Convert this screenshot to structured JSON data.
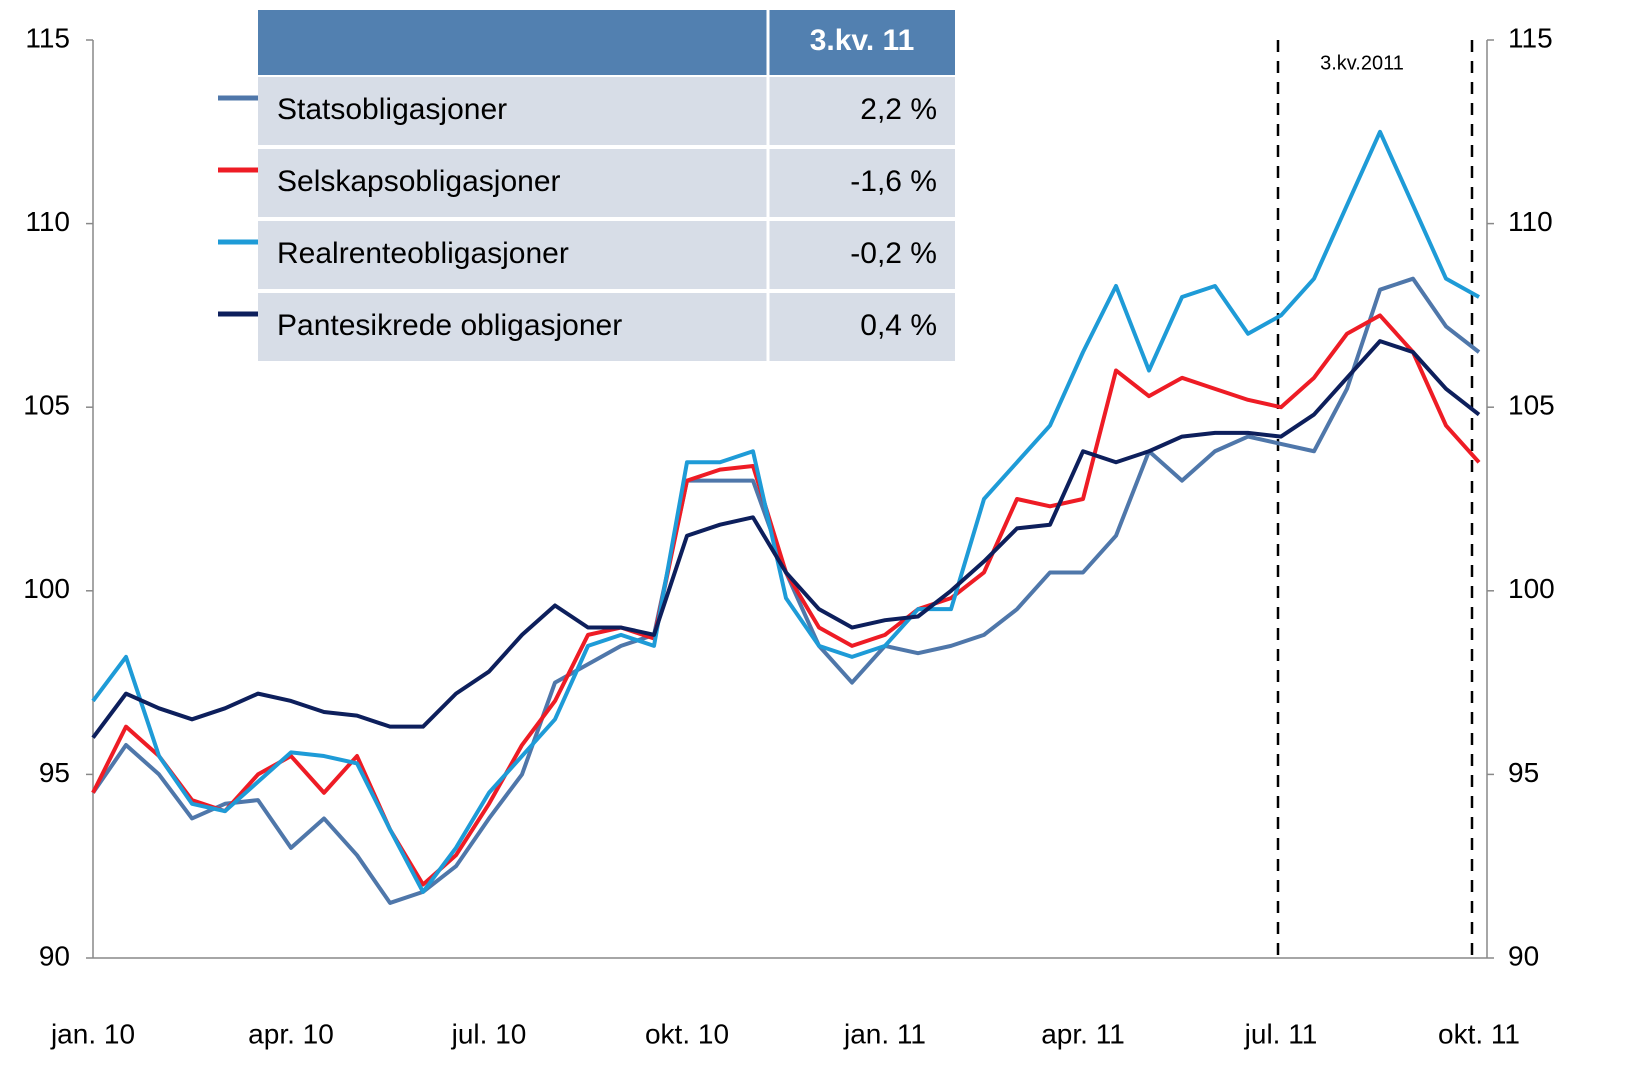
{
  "chart_data": {
    "type": "line",
    "categories": [
      "jan. 10",
      null,
      null,
      null,
      null,
      null,
      "apr. 10",
      null,
      null,
      null,
      null,
      null,
      "jul. 10",
      null,
      null,
      null,
      null,
      null,
      "okt. 10",
      null,
      null,
      null,
      null,
      null,
      "jan. 11",
      null,
      null,
      null,
      null,
      null,
      "apr. 11",
      null,
      null,
      null,
      null,
      null,
      "jul. 11",
      null,
      null,
      null,
      null,
      null,
      "okt. 11"
    ],
    "series": [
      {
        "name": "Statsobligasjoner",
        "color": "#4f77aa",
        "return": "2,2 %",
        "values": [
          94.5,
          95.8,
          95,
          93.8,
          94.2,
          94.3,
          93,
          93.8,
          92.8,
          91.5,
          91.8,
          92.5,
          93.8,
          95,
          97.5,
          98,
          98.5,
          98.8,
          103,
          103,
          103,
          100.5,
          98.5,
          97.5,
          98.5,
          98.3,
          98.5,
          98.8,
          99.5,
          100.5,
          100.5,
          101.5,
          103.8,
          103,
          103.8,
          104.2,
          104,
          103.8,
          105.5,
          108.2,
          108.5,
          107.2,
          106.5
        ]
      },
      {
        "name": "Selskapsobligasjoner",
        "color": "#ee1c25",
        "return": "-1,6 %",
        "values": [
          94.5,
          96.3,
          95.5,
          94.3,
          94,
          95,
          95.5,
          94.5,
          95.5,
          93.5,
          92,
          92.8,
          94.2,
          95.8,
          97,
          98.8,
          99,
          98.7,
          103,
          103.3,
          103.4,
          100.5,
          99,
          98.5,
          98.8,
          99.5,
          99.8,
          100.5,
          102.5,
          102.3,
          102.5,
          106,
          105.3,
          105.8,
          105.5,
          105.2,
          105,
          105.8,
          107,
          107.5,
          106.5,
          104.5,
          103.5
        ]
      },
      {
        "name": "Realrenteobligasjoner",
        "color": "#1e9bd7",
        "return": "-0,2 %",
        "values": [
          97,
          98.2,
          95.5,
          94.2,
          94,
          94.8,
          95.6,
          95.5,
          95.3,
          93.5,
          91.8,
          93,
          94.5,
          95.5,
          96.5,
          98.5,
          98.8,
          98.5,
          103.5,
          103.5,
          103.8,
          99.8,
          98.5,
          98.2,
          98.5,
          99.5,
          99.5,
          102.5,
          103.5,
          104.5,
          106.5,
          108.3,
          106,
          108,
          108.3,
          107,
          107.5,
          108.5,
          110.5,
          112.5,
          110.5,
          108.5,
          108
        ]
      },
      {
        "name": "Pantesikrede obligasjoner",
        "color": "#0d1f5c",
        "return": "0,4 %",
        "values": [
          96,
          97.2,
          96.8,
          96.5,
          96.8,
          97.2,
          97,
          96.7,
          96.6,
          96.3,
          96.3,
          97.2,
          97.8,
          98.8,
          99.6,
          99,
          99,
          98.8,
          101.5,
          101.8,
          102,
          100.5,
          99.5,
          99,
          99.2,
          99.3,
          100,
          100.8,
          101.7,
          101.8,
          103.8,
          103.5,
          103.8,
          104.2,
          104.3,
          104.3,
          104.2,
          104.8,
          105.8,
          106.8,
          106.5,
          105.5,
          104.8
        ]
      }
    ],
    "table_header": "3.kv.  11",
    "annotation": "3.kv.2011",
    "ylim": [
      90,
      115
    ],
    "yticks": [
      90,
      95,
      100,
      105,
      110,
      115
    ],
    "y2lim": [
      90,
      115
    ],
    "y2ticks": [
      90,
      95,
      100,
      105,
      110,
      115
    ]
  }
}
